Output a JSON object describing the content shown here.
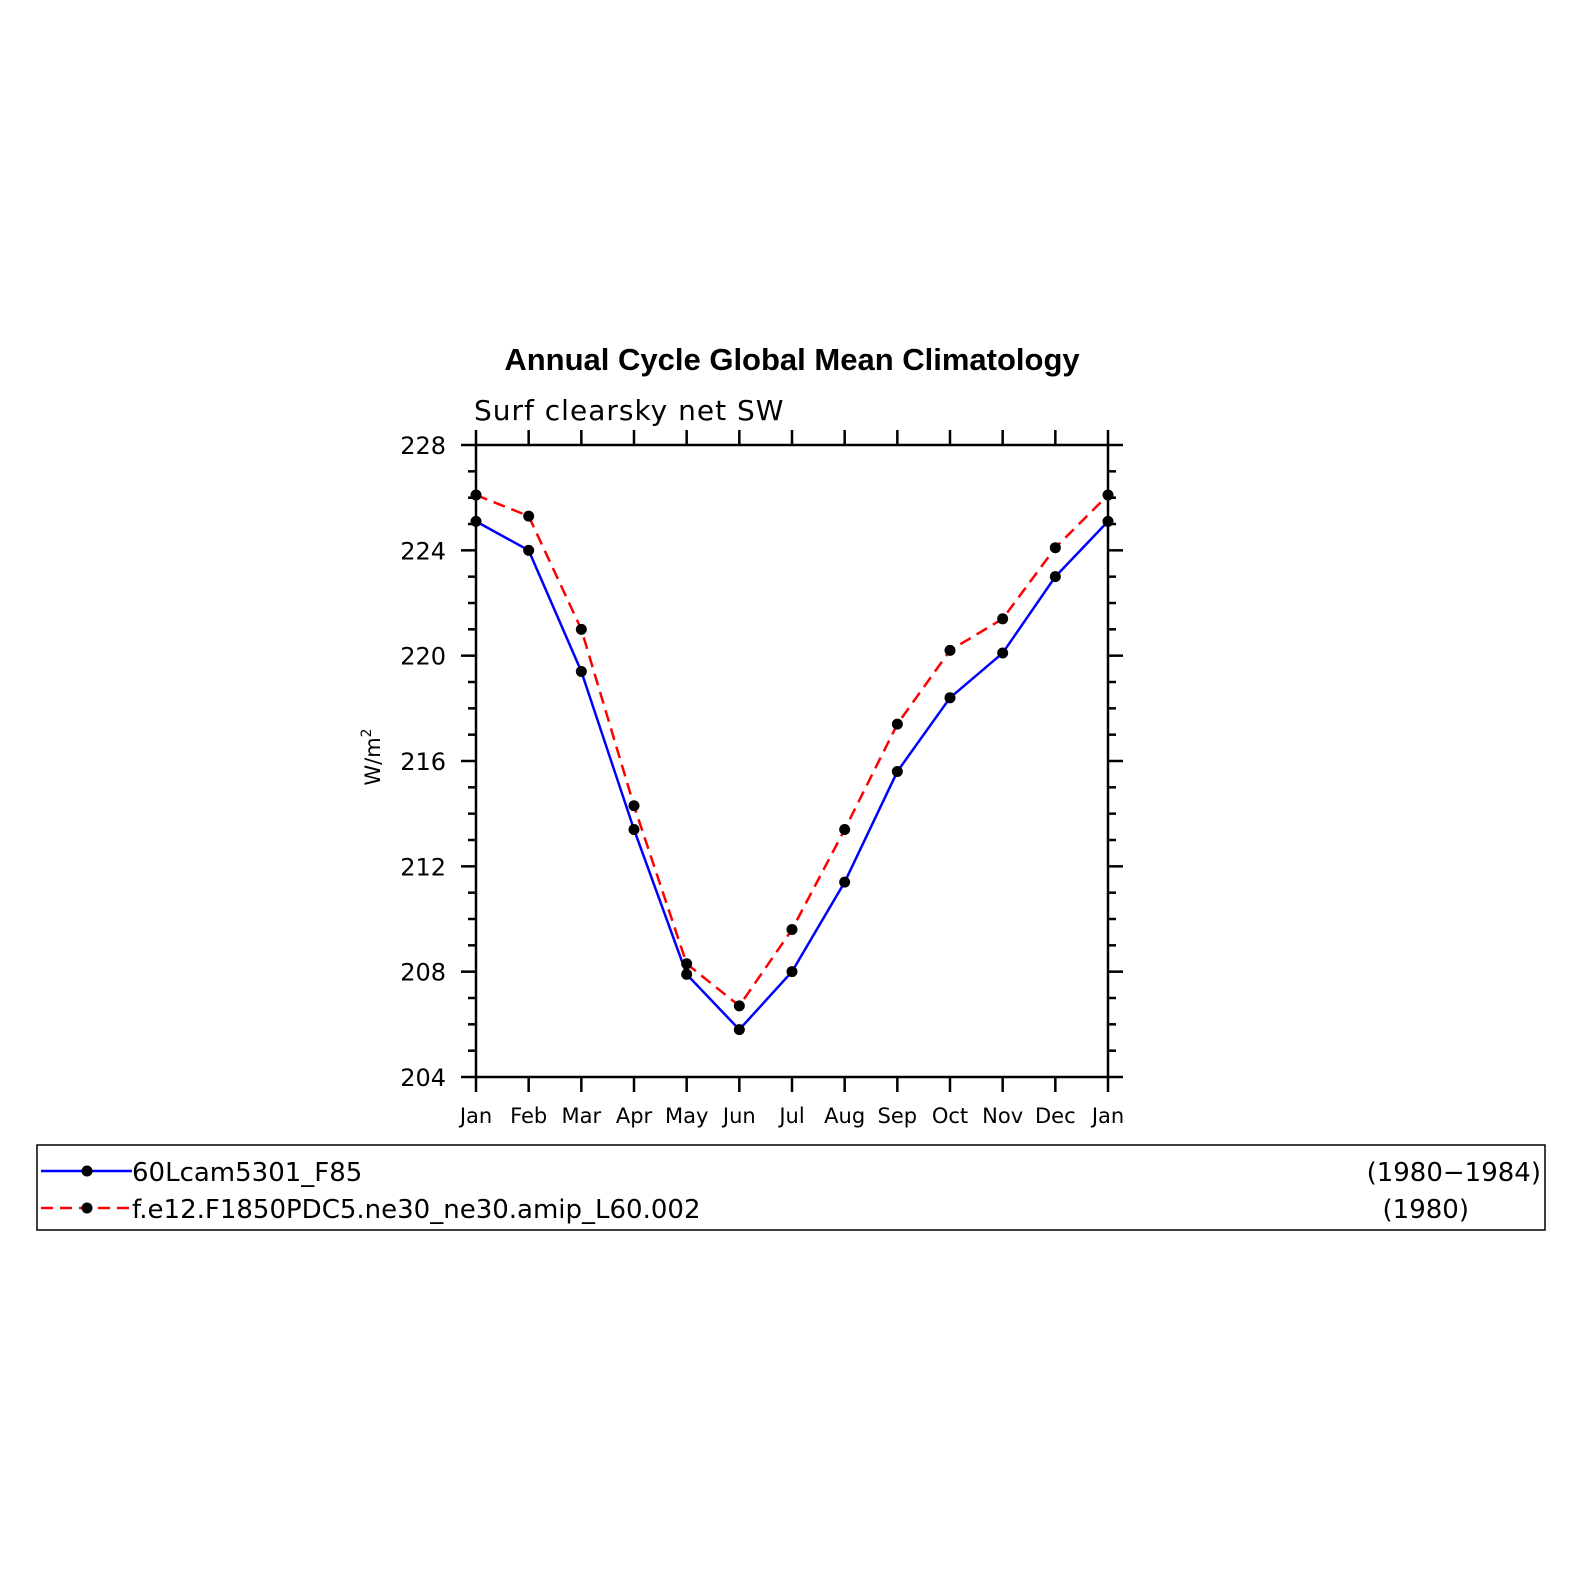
{
  "chart_data": {
    "type": "line",
    "title": "Annual Cycle Global Mean Climatology",
    "subtitle": "Surf clearsky net SW",
    "ylabel": "W/m",
    "ylabel_superscript": "2",
    "xlabel": "",
    "categories": [
      "Jan",
      "Feb",
      "Mar",
      "Apr",
      "May",
      "Jun",
      "Jul",
      "Aug",
      "Sep",
      "Oct",
      "Nov",
      "Dec",
      "Jan"
    ],
    "ylim": [
      204,
      228
    ],
    "yticks": [
      "204",
      "208",
      "212",
      "216",
      "220",
      "224",
      "228"
    ],
    "grid": false,
    "series": [
      {
        "name": "60Lcam5301_F85",
        "period": "(1980−1984)",
        "color": "#0000ff",
        "line_style": "solid",
        "marker": "filled-circle",
        "values": [
          225.1,
          224.0,
          219.4,
          213.4,
          207.9,
          205.8,
          208.0,
          211.4,
          215.6,
          218.4,
          220.1,
          223.0,
          225.1
        ]
      },
      {
        "name": "f.e12.F1850PDC5.ne30_ne30.amip_L60.002",
        "period": "(1980)",
        "color": "#ff0000",
        "line_style": "dashed",
        "marker": "filled-circle",
        "values": [
          226.1,
          225.3,
          221.0,
          214.3,
          208.3,
          206.7,
          209.6,
          213.4,
          217.4,
          220.2,
          221.4,
          224.1,
          226.1
        ]
      }
    ]
  }
}
